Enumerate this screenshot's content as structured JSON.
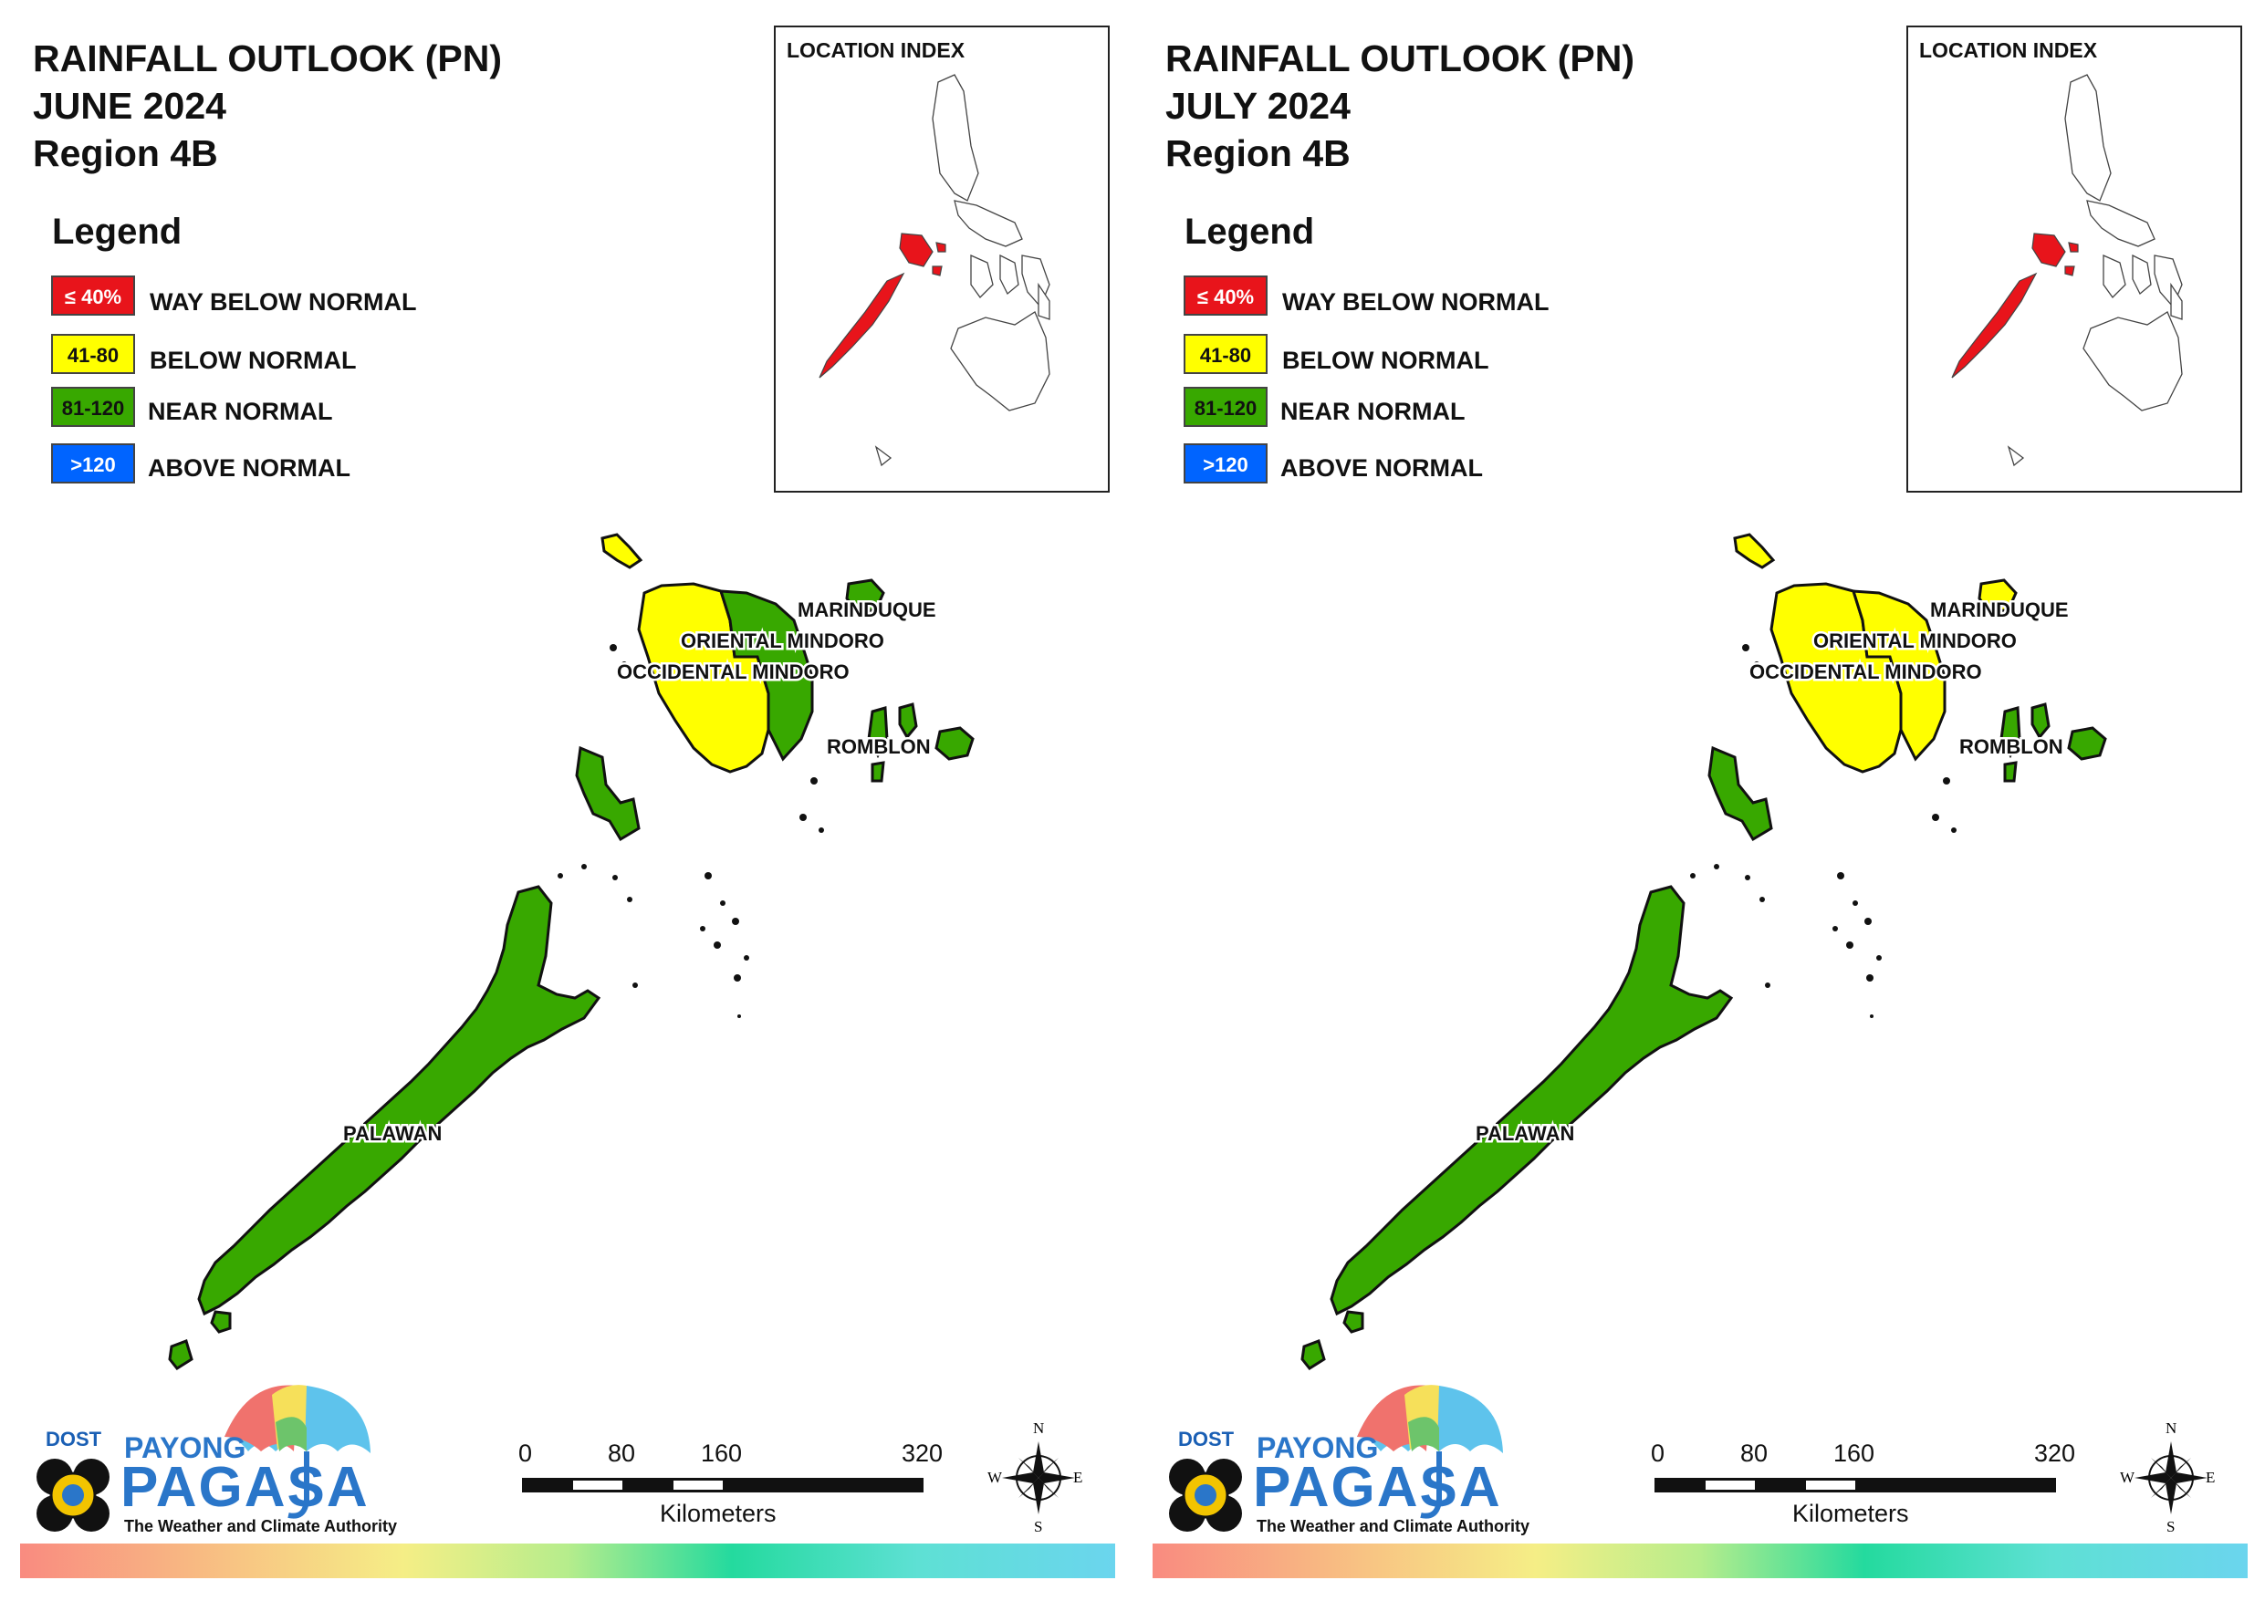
{
  "panels": [
    {
      "title_line1": "RAINFALL OUTLOOK (PN)",
      "title_line2": "JUNE 2024",
      "title_line3": "Region 4B",
      "provinces": {
        "marinduque": "near-normal",
        "oriental_mindoro": "near-normal",
        "occidental_mindoro": "below-normal",
        "romblon": "near-normal",
        "palawan": "near-normal"
      }
    },
    {
      "title_line1": "RAINFALL OUTLOOK (PN)",
      "title_line2": "JULY 2024",
      "title_line3": "Region 4B",
      "provinces": {
        "marinduque": "below-normal",
        "oriental_mindoro": "below-normal",
        "occidental_mindoro": "below-normal",
        "romblon": "near-normal",
        "palawan": "near-normal"
      }
    }
  ],
  "legend": {
    "title": "Legend",
    "items": [
      {
        "code": "≤ 40%",
        "label": "WAY BELOW NORMAL",
        "color": "#e8141b",
        "text_color": "#ffffff"
      },
      {
        "code": "41-80",
        "label": "BELOW NORMAL",
        "color": "#ffff00",
        "text_color": "#111111"
      },
      {
        "code": "81-120",
        "label": "NEAR NORMAL",
        "color": "#38a800",
        "text_color": "#111111"
      },
      {
        "code": ">120",
        "label": "ABOVE NORMAL",
        "color": "#0064ff",
        "text_color": "#ffffff"
      }
    ]
  },
  "inset": {
    "title": "LOCATION INDEX",
    "highlight_color": "#e8141b"
  },
  "labels": {
    "marinduque": "MARINDUQUE",
    "oriental_mindoro": "ORIENTAL MINDORO",
    "occidental_mindoro": "OCCIDENTAL MINDORO",
    "romblon": "ROMBLON",
    "palawan": "PALAWAN"
  },
  "logo": {
    "dost": "DOST",
    "payong": "PAYONG",
    "pagasa": "PAGASA",
    "tagline": "The Weather and Climate Authority"
  },
  "scale": {
    "ticks": [
      "0",
      "80",
      "160",
      "320"
    ],
    "unit": "Kilometers"
  },
  "compass": {
    "n": "N",
    "s": "S",
    "e": "E",
    "w": "W"
  }
}
